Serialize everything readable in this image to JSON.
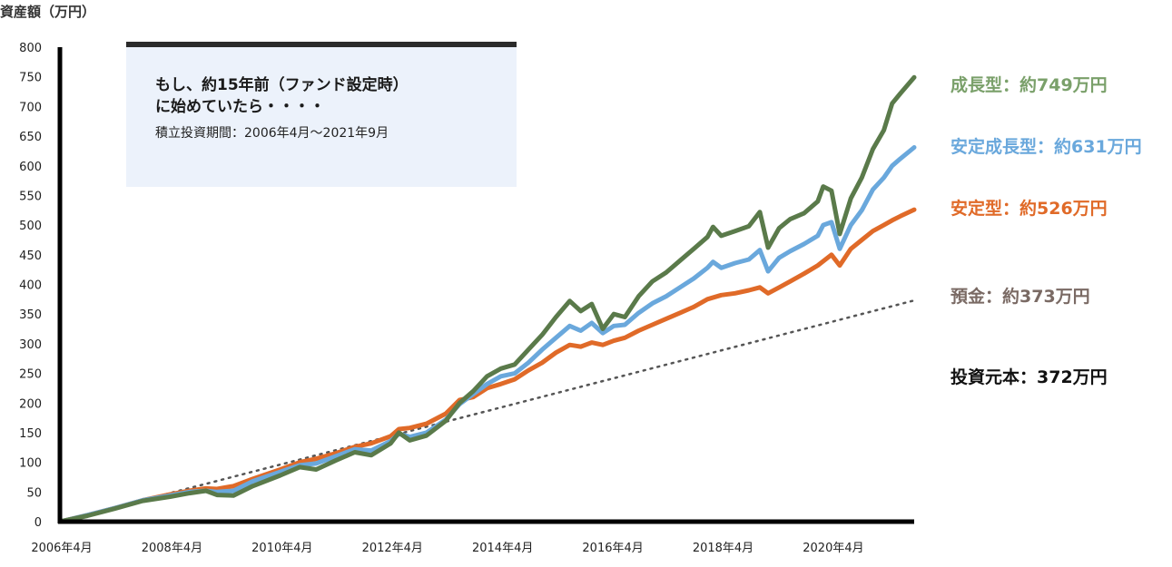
{
  "annotation": {
    "line1": "もし、約15年前（ファンド設定時）",
    "line2": "に始めていたら・・・・",
    "sub": "積立投資期間：2006年4月～2021年9月"
  },
  "chart_data": {
    "type": "line",
    "ylabel": "資産額（万円）",
    "xlabel": "",
    "ylim": [
      0,
      800
    ],
    "yticks": [
      0,
      50,
      100,
      150,
      200,
      250,
      300,
      350,
      400,
      450,
      500,
      550,
      600,
      650,
      700,
      750,
      800
    ],
    "xlim": [
      2006.25,
      2021.75
    ],
    "xticks": [
      {
        "value": 2006.25,
        "label": "2006年4月"
      },
      {
        "value": 2008.25,
        "label": "2008年4月"
      },
      {
        "value": 2010.25,
        "label": "2010年4月"
      },
      {
        "value": 2012.25,
        "label": "2012年4月"
      },
      {
        "value": 2014.25,
        "label": "2014年4月"
      },
      {
        "value": 2016.25,
        "label": "2016年4月"
      },
      {
        "value": 2018.25,
        "label": "2018年4月"
      },
      {
        "value": 2020.25,
        "label": "2020年4月"
      }
    ],
    "series": [
      {
        "label": "成長型：約749万円",
        "color": "#5a7a4a",
        "label_color": "#7aa06a",
        "style": "solid",
        "points": [
          [
            2006.25,
            0
          ],
          [
            2006.75,
            10
          ],
          [
            2007.25,
            22
          ],
          [
            2007.75,
            35
          ],
          [
            2008.25,
            42
          ],
          [
            2008.6,
            48
          ],
          [
            2008.9,
            52
          ],
          [
            2009.1,
            45
          ],
          [
            2009.4,
            44
          ],
          [
            2009.75,
            60
          ],
          [
            2010.25,
            78
          ],
          [
            2010.6,
            92
          ],
          [
            2010.9,
            88
          ],
          [
            2011.25,
            103
          ],
          [
            2011.6,
            117
          ],
          [
            2011.9,
            112
          ],
          [
            2012.25,
            132
          ],
          [
            2012.4,
            150
          ],
          [
            2012.6,
            137
          ],
          [
            2012.9,
            145
          ],
          [
            2013.25,
            170
          ],
          [
            2013.5,
            200
          ],
          [
            2013.75,
            220
          ],
          [
            2014.0,
            245
          ],
          [
            2014.25,
            258
          ],
          [
            2014.5,
            265
          ],
          [
            2014.75,
            290
          ],
          [
            2015.0,
            315
          ],
          [
            2015.25,
            345
          ],
          [
            2015.5,
            372
          ],
          [
            2015.7,
            355
          ],
          [
            2015.9,
            367
          ],
          [
            2016.1,
            325
          ],
          [
            2016.3,
            350
          ],
          [
            2016.5,
            345
          ],
          [
            2016.75,
            380
          ],
          [
            2017.0,
            405
          ],
          [
            2017.25,
            420
          ],
          [
            2017.5,
            440
          ],
          [
            2017.75,
            460
          ],
          [
            2018.0,
            480
          ],
          [
            2018.1,
            497
          ],
          [
            2018.25,
            482
          ],
          [
            2018.5,
            490
          ],
          [
            2018.75,
            498
          ],
          [
            2018.95,
            522
          ],
          [
            2019.1,
            462
          ],
          [
            2019.3,
            495
          ],
          [
            2019.5,
            510
          ],
          [
            2019.75,
            520
          ],
          [
            2020.0,
            540
          ],
          [
            2020.1,
            565
          ],
          [
            2020.25,
            558
          ],
          [
            2020.4,
            485
          ],
          [
            2020.6,
            545
          ],
          [
            2020.8,
            580
          ],
          [
            2021.0,
            628
          ],
          [
            2021.2,
            660
          ],
          [
            2021.35,
            705
          ],
          [
            2021.5,
            722
          ],
          [
            2021.75,
            749
          ]
        ]
      },
      {
        "label": "安定成長型：約631万円",
        "color": "#6aa8dc",
        "label_color": "#6aa8dc",
        "style": "solid",
        "points": [
          [
            2006.25,
            0
          ],
          [
            2006.75,
            11
          ],
          [
            2007.25,
            23
          ],
          [
            2007.75,
            36
          ],
          [
            2008.25,
            44
          ],
          [
            2008.6,
            50
          ],
          [
            2008.9,
            52
          ],
          [
            2009.1,
            50
          ],
          [
            2009.4,
            52
          ],
          [
            2009.75,
            68
          ],
          [
            2010.25,
            84
          ],
          [
            2010.6,
            95
          ],
          [
            2010.9,
            98
          ],
          [
            2011.25,
            110
          ],
          [
            2011.6,
            122
          ],
          [
            2011.9,
            120
          ],
          [
            2012.25,
            136
          ],
          [
            2012.4,
            148
          ],
          [
            2012.6,
            143
          ],
          [
            2012.9,
            150
          ],
          [
            2013.25,
            172
          ],
          [
            2013.5,
            198
          ],
          [
            2013.75,
            215
          ],
          [
            2014.0,
            232
          ],
          [
            2014.25,
            245
          ],
          [
            2014.5,
            250
          ],
          [
            2014.75,
            268
          ],
          [
            2015.0,
            290
          ],
          [
            2015.25,
            310
          ],
          [
            2015.5,
            330
          ],
          [
            2015.7,
            322
          ],
          [
            2015.9,
            335
          ],
          [
            2016.1,
            318
          ],
          [
            2016.3,
            330
          ],
          [
            2016.5,
            332
          ],
          [
            2016.75,
            352
          ],
          [
            2017.0,
            368
          ],
          [
            2017.25,
            380
          ],
          [
            2017.5,
            395
          ],
          [
            2017.75,
            410
          ],
          [
            2018.0,
            428
          ],
          [
            2018.1,
            438
          ],
          [
            2018.25,
            428
          ],
          [
            2018.5,
            436
          ],
          [
            2018.75,
            442
          ],
          [
            2018.95,
            458
          ],
          [
            2019.1,
            422
          ],
          [
            2019.3,
            445
          ],
          [
            2019.5,
            456
          ],
          [
            2019.75,
            468
          ],
          [
            2020.0,
            482
          ],
          [
            2020.1,
            500
          ],
          [
            2020.25,
            505
          ],
          [
            2020.4,
            460
          ],
          [
            2020.6,
            500
          ],
          [
            2020.8,
            525
          ],
          [
            2021.0,
            560
          ],
          [
            2021.2,
            580
          ],
          [
            2021.35,
            600
          ],
          [
            2021.5,
            612
          ],
          [
            2021.75,
            631
          ]
        ]
      },
      {
        "label": "安定型：約526万円",
        "color": "#e06a28",
        "label_color": "#e06a28",
        "style": "solid",
        "points": [
          [
            2006.25,
            0
          ],
          [
            2006.75,
            11
          ],
          [
            2007.25,
            23
          ],
          [
            2007.75,
            36
          ],
          [
            2008.25,
            46
          ],
          [
            2008.6,
            52
          ],
          [
            2008.9,
            56
          ],
          [
            2009.1,
            55
          ],
          [
            2009.4,
            60
          ],
          [
            2009.75,
            72
          ],
          [
            2010.25,
            88
          ],
          [
            2010.6,
            100
          ],
          [
            2010.9,
            106
          ],
          [
            2011.25,
            115
          ],
          [
            2011.6,
            126
          ],
          [
            2011.9,
            132
          ],
          [
            2012.25,
            144
          ],
          [
            2012.4,
            156
          ],
          [
            2012.6,
            158
          ],
          [
            2012.9,
            165
          ],
          [
            2013.25,
            182
          ],
          [
            2013.5,
            205
          ],
          [
            2013.75,
            210
          ],
          [
            2014.0,
            225
          ],
          [
            2014.25,
            232
          ],
          [
            2014.5,
            240
          ],
          [
            2014.75,
            255
          ],
          [
            2015.0,
            268
          ],
          [
            2015.25,
            285
          ],
          [
            2015.5,
            298
          ],
          [
            2015.7,
            295
          ],
          [
            2015.9,
            302
          ],
          [
            2016.1,
            298
          ],
          [
            2016.3,
            305
          ],
          [
            2016.5,
            310
          ],
          [
            2016.75,
            322
          ],
          [
            2017.0,
            332
          ],
          [
            2017.25,
            342
          ],
          [
            2017.5,
            352
          ],
          [
            2017.75,
            362
          ],
          [
            2018.0,
            375
          ],
          [
            2018.25,
            382
          ],
          [
            2018.5,
            385
          ],
          [
            2018.75,
            390
          ],
          [
            2018.95,
            395
          ],
          [
            2019.1,
            385
          ],
          [
            2019.3,
            395
          ],
          [
            2019.5,
            405
          ],
          [
            2019.75,
            418
          ],
          [
            2020.0,
            432
          ],
          [
            2020.25,
            450
          ],
          [
            2020.4,
            432
          ],
          [
            2020.6,
            460
          ],
          [
            2020.8,
            475
          ],
          [
            2021.0,
            490
          ],
          [
            2021.2,
            500
          ],
          [
            2021.35,
            508
          ],
          [
            2021.5,
            515
          ],
          [
            2021.75,
            526
          ]
        ]
      },
      {
        "label": "預金：約373万円",
        "color": "#555555",
        "label_color": "#7a6a64",
        "style": "dotted",
        "points": [
          [
            2006.25,
            0
          ],
          [
            2021.75,
            373
          ]
        ]
      },
      {
        "label": "投資元本：372万円",
        "color": "#111111",
        "label_color": "#111111",
        "style": "none",
        "points": [
          [
            2006.25,
            0
          ],
          [
            2021.75,
            372
          ]
        ]
      }
    ]
  }
}
